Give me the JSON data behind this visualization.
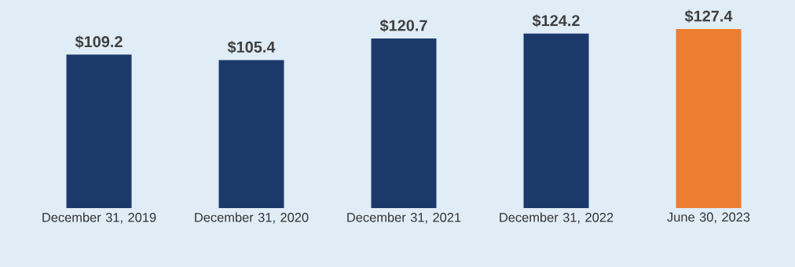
{
  "chart_data": {
    "type": "bar",
    "categories": [
      "December 31, 2019",
      "December 31, 2020",
      "December 31, 2021",
      "December 31, 2022",
      "June 30, 2023"
    ],
    "values": [
      109.2,
      105.4,
      120.7,
      124.2,
      127.4
    ],
    "value_labels": [
      "$109.2",
      "$105.4",
      "$120.7",
      "$124.2",
      "$127.4"
    ],
    "colors": [
      "#1b3a6b",
      "#1b3a6b",
      "#1b3a6b",
      "#1b3a6b",
      "#ed7d31"
    ],
    "grid": false
  }
}
